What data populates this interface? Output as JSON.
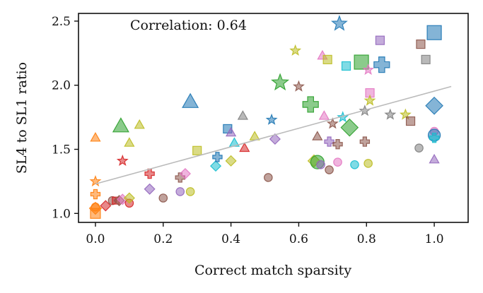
{
  "chart_data": {
    "type": "scatter",
    "title": "",
    "annotation": "Correlation: 0.64",
    "xlabel": "Correct match sparsity",
    "ylabel": "SL4 to SL1 ratio",
    "xlim": [
      -0.05,
      1.1
    ],
    "ylim": [
      0.93,
      2.56
    ],
    "xticks": [
      "0.0",
      "0.2",
      "0.4",
      "0.6",
      "0.8",
      "1.0"
    ],
    "xtick_values": [
      0.0,
      0.2,
      0.4,
      0.6,
      0.8,
      1.0
    ],
    "yticks": [
      "1.0",
      "1.5",
      "2.0",
      "2.5"
    ],
    "ytick_values": [
      1.0,
      1.5,
      2.0,
      2.5
    ],
    "grid": false,
    "legend": "none",
    "trend_line": {
      "x": [
        0.0,
        1.05
      ],
      "y": [
        1.23,
        1.99
      ],
      "color": "#bbbbbb"
    },
    "colors": {
      "blue": "#1f77b4",
      "orange": "#ff7f0e",
      "green": "#2ca02c",
      "red": "#d62728",
      "purple": "#9467bd",
      "brown": "#8c564b",
      "pink": "#e377c2",
      "gray": "#7f7f7f",
      "olive": "#bcbd22",
      "cyan": "#17becf"
    },
    "points": [
      {
        "x": 0.0,
        "y": 1.0,
        "m": "square",
        "c": "orange",
        "s": 7
      },
      {
        "x": 0.0,
        "y": 1.04,
        "m": "diamond",
        "c": "orange",
        "s": 7
      },
      {
        "x": 0.0,
        "y": 1.05,
        "m": "circle",
        "c": "orange",
        "s": 6
      },
      {
        "x": 0.0,
        "y": 1.15,
        "m": "plus",
        "c": "orange",
        "s": 6
      },
      {
        "x": 0.0,
        "y": 1.25,
        "m": "star",
        "c": "orange",
        "s": 6
      },
      {
        "x": 0.0,
        "y": 1.59,
        "m": "triangle",
        "c": "orange",
        "s": 6
      },
      {
        "x": 0.03,
        "y": 1.06,
        "m": "diamond",
        "c": "red",
        "s": 6
      },
      {
        "x": 0.05,
        "y": 1.1,
        "m": "circle",
        "c": "brown",
        "s": 6
      },
      {
        "x": 0.06,
        "y": 1.1,
        "m": "square",
        "c": "red",
        "s": 5
      },
      {
        "x": 0.07,
        "y": 1.1,
        "m": "diamond",
        "c": "brown",
        "s": 6
      },
      {
        "x": 0.08,
        "y": 1.11,
        "m": "diamond",
        "c": "pink",
        "s": 6
      },
      {
        "x": 0.08,
        "y": 1.41,
        "m": "star",
        "c": "red",
        "s": 6
      },
      {
        "x": 0.075,
        "y": 1.68,
        "m": "triangle",
        "c": "green",
        "s": 10
      },
      {
        "x": 0.1,
        "y": 1.08,
        "m": "circle",
        "c": "red",
        "s": 6
      },
      {
        "x": 0.1,
        "y": 1.12,
        "m": "diamond",
        "c": "olive",
        "s": 6
      },
      {
        "x": 0.1,
        "y": 1.55,
        "m": "triangle",
        "c": "olive",
        "s": 6
      },
      {
        "x": 0.13,
        "y": 1.69,
        "m": "triangle",
        "c": "olive",
        "s": 6
      },
      {
        "x": 0.16,
        "y": 1.19,
        "m": "diamond",
        "c": "purple",
        "s": 6
      },
      {
        "x": 0.16,
        "y": 1.31,
        "m": "plus",
        "c": "red",
        "s": 6
      },
      {
        "x": 0.2,
        "y": 1.12,
        "m": "circle",
        "c": "brown",
        "s": 6
      },
      {
        "x": 0.25,
        "y": 1.17,
        "m": "circle",
        "c": "purple",
        "s": 6
      },
      {
        "x": 0.25,
        "y": 1.28,
        "m": "plus",
        "c": "brown",
        "s": 6
      },
      {
        "x": 0.265,
        "y": 1.31,
        "m": "diamond",
        "c": "pink",
        "s": 6
      },
      {
        "x": 0.28,
        "y": 1.87,
        "m": "triangle",
        "c": "blue",
        "s": 10
      },
      {
        "x": 0.28,
        "y": 1.17,
        "m": "circle",
        "c": "olive",
        "s": 6
      },
      {
        "x": 0.3,
        "y": 1.49,
        "m": "square",
        "c": "olive",
        "s": 6
      },
      {
        "x": 0.355,
        "y": 1.37,
        "m": "diamond",
        "c": "cyan",
        "s": 6
      },
      {
        "x": 0.36,
        "y": 1.44,
        "m": "plus",
        "c": "blue",
        "s": 6
      },
      {
        "x": 0.39,
        "y": 1.66,
        "m": "square",
        "c": "blue",
        "s": 6
      },
      {
        "x": 0.4,
        "y": 1.63,
        "m": "triangle",
        "c": "purple",
        "s": 6
      },
      {
        "x": 0.4,
        "y": 1.41,
        "m": "diamond",
        "c": "olive",
        "s": 6
      },
      {
        "x": 0.41,
        "y": 1.55,
        "m": "triangle",
        "c": "cyan",
        "s": 6
      },
      {
        "x": 0.435,
        "y": 1.76,
        "m": "triangle",
        "c": "gray",
        "s": 6
      },
      {
        "x": 0.44,
        "y": 1.51,
        "m": "triangle",
        "c": "red",
        "s": 6
      },
      {
        "x": 0.47,
        "y": 1.6,
        "m": "triangle",
        "c": "olive",
        "s": 6
      },
      {
        "x": 0.51,
        "y": 1.28,
        "m": "circle",
        "c": "brown",
        "s": 6
      },
      {
        "x": 0.52,
        "y": 1.73,
        "m": "star",
        "c": "blue",
        "s": 6
      },
      {
        "x": 0.53,
        "y": 1.58,
        "m": "diamond",
        "c": "purple",
        "s": 6
      },
      {
        "x": 0.545,
        "y": 2.02,
        "m": "star",
        "c": "green",
        "s": 10
      },
      {
        "x": 0.59,
        "y": 2.27,
        "m": "star",
        "c": "olive",
        "s": 6
      },
      {
        "x": 0.6,
        "y": 1.99,
        "m": "star",
        "c": "brown",
        "s": 6
      },
      {
        "x": 0.635,
        "y": 1.85,
        "m": "plus",
        "c": "green",
        "s": 10
      },
      {
        "x": 0.645,
        "y": 1.41,
        "m": "diamond",
        "c": "olive",
        "s": 7
      },
      {
        "x": 0.655,
        "y": 1.4,
        "m": "circle",
        "c": "green",
        "s": 10
      },
      {
        "x": 0.655,
        "y": 1.6,
        "m": "triangle",
        "c": "brown",
        "s": 6
      },
      {
        "x": 0.665,
        "y": 1.38,
        "m": "circle",
        "c": "purple",
        "s": 6
      },
      {
        "x": 0.67,
        "y": 2.23,
        "m": "triangle",
        "c": "pink",
        "s": 6
      },
      {
        "x": 0.675,
        "y": 1.76,
        "m": "triangle",
        "c": "pink",
        "s": 6
      },
      {
        "x": 0.685,
        "y": 2.2,
        "m": "square",
        "c": "olive",
        "s": 6
      },
      {
        "x": 0.69,
        "y": 1.56,
        "m": "plus",
        "c": "purple",
        "s": 6
      },
      {
        "x": 0.69,
        "y": 1.34,
        "m": "circle",
        "c": "brown",
        "s": 6
      },
      {
        "x": 0.7,
        "y": 1.7,
        "m": "star",
        "c": "brown",
        "s": 6
      },
      {
        "x": 0.715,
        "y": 1.54,
        "m": "plus",
        "c": "brown",
        "s": 6
      },
      {
        "x": 0.715,
        "y": 1.4,
        "m": "circle",
        "c": "pink",
        "s": 6
      },
      {
        "x": 0.72,
        "y": 2.48,
        "m": "star",
        "c": "blue",
        "s": 9
      },
      {
        "x": 0.73,
        "y": 1.75,
        "m": "star",
        "c": "cyan",
        "s": 6
      },
      {
        "x": 0.74,
        "y": 2.15,
        "m": "square",
        "c": "cyan",
        "s": 6
      },
      {
        "x": 0.75,
        "y": 1.67,
        "m": "diamond",
        "c": "green",
        "s": 10
      },
      {
        "x": 0.765,
        "y": 1.38,
        "m": "circle",
        "c": "cyan",
        "s": 6
      },
      {
        "x": 0.785,
        "y": 2.18,
        "m": "square",
        "c": "green",
        "s": 10
      },
      {
        "x": 0.795,
        "y": 1.8,
        "m": "star",
        "c": "gray",
        "s": 6
      },
      {
        "x": 0.795,
        "y": 1.56,
        "m": "plus",
        "c": "brown",
        "s": 6
      },
      {
        "x": 0.805,
        "y": 1.39,
        "m": "circle",
        "c": "olive",
        "s": 6
      },
      {
        "x": 0.805,
        "y": 2.12,
        "m": "star",
        "c": "pink",
        "s": 6
      },
      {
        "x": 0.81,
        "y": 1.94,
        "m": "square",
        "c": "pink",
        "s": 6
      },
      {
        "x": 0.81,
        "y": 1.88,
        "m": "star",
        "c": "olive",
        "s": 6
      },
      {
        "x": 0.84,
        "y": 2.35,
        "m": "square",
        "c": "purple",
        "s": 6
      },
      {
        "x": 0.845,
        "y": 2.16,
        "m": "plus",
        "c": "blue",
        "s": 10
      },
      {
        "x": 0.87,
        "y": 1.77,
        "m": "star",
        "c": "gray",
        "s": 6
      },
      {
        "x": 0.915,
        "y": 1.77,
        "m": "star",
        "c": "olive",
        "s": 6
      },
      {
        "x": 0.93,
        "y": 1.72,
        "m": "square",
        "c": "brown",
        "s": 6
      },
      {
        "x": 0.955,
        "y": 1.51,
        "m": "circle",
        "c": "gray",
        "s": 6
      },
      {
        "x": 0.96,
        "y": 2.32,
        "m": "square",
        "c": "brown",
        "s": 6
      },
      {
        "x": 0.975,
        "y": 2.2,
        "m": "square",
        "c": "gray",
        "s": 6
      },
      {
        "x": 1.0,
        "y": 2.41,
        "m": "square",
        "c": "blue",
        "s": 10
      },
      {
        "x": 1.0,
        "y": 1.84,
        "m": "diamond",
        "c": "blue",
        "s": 10
      },
      {
        "x": 1.0,
        "y": 1.64,
        "m": "circle",
        "c": "pink",
        "s": 6
      },
      {
        "x": 1.0,
        "y": 1.61,
        "m": "circle",
        "c": "blue",
        "s": 9
      },
      {
        "x": 1.0,
        "y": 1.59,
        "m": "plus",
        "c": "cyan",
        "s": 6
      },
      {
        "x": 1.0,
        "y": 1.42,
        "m": "triangle",
        "c": "purple",
        "s": 6
      }
    ]
  }
}
